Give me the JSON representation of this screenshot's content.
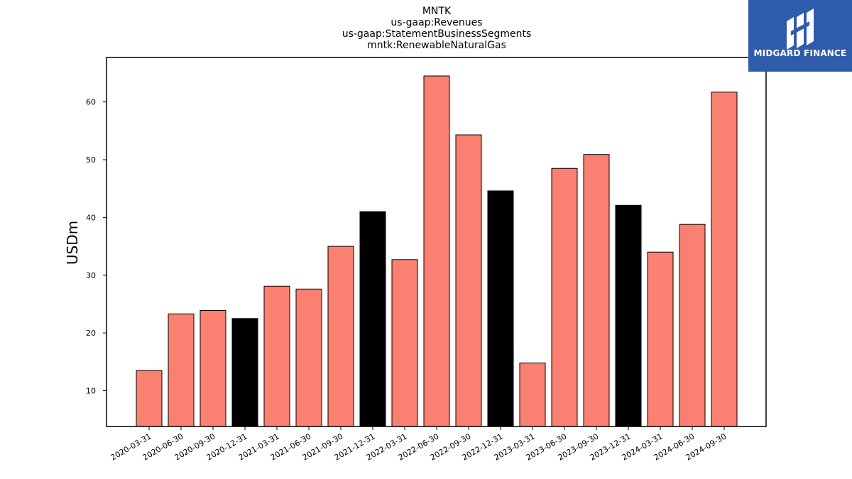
{
  "chart_data": {
    "type": "bar",
    "title_lines": [
      "MNTK",
      "us-gaap:Revenues",
      "us-gaap:StatementBusinessSegments",
      "mntk:RenewableNaturalGas"
    ],
    "ylabel": "USDm",
    "xlabel": "",
    "ylim": [
      3.8,
      67.7
    ],
    "yticks": [
      10,
      20,
      30,
      40,
      50,
      60
    ],
    "categories": [
      "2020-03-31",
      "2020-06-30",
      "2020-09-30",
      "2020-12-31",
      "2021-03-31",
      "2021-06-30",
      "2021-09-30",
      "2021-12-31",
      "2022-03-31",
      "2022-06-30",
      "2022-09-30",
      "2022-12-31",
      "2023-03-31",
      "2023-06-30",
      "2023-09-30",
      "2023-12-31",
      "2024-03-31",
      "2024-06-30",
      "2024-09-30"
    ],
    "values": [
      13.5,
      23.3,
      23.9,
      22.5,
      28.1,
      27.6,
      35.0,
      41.0,
      32.7,
      64.5,
      54.3,
      44.6,
      14.8,
      48.5,
      50.9,
      42.1,
      34.0,
      38.8,
      61.7
    ],
    "is_fiscal_year_end": [
      false,
      false,
      false,
      true,
      false,
      false,
      false,
      true,
      false,
      false,
      false,
      true,
      false,
      false,
      false,
      true,
      false,
      false,
      false
    ],
    "colors": {
      "quarter": "#fa8072",
      "year_end": "#000000",
      "edge": "#000000"
    },
    "grid": false,
    "legend": "none"
  },
  "logo": {
    "text": "MIDGARD FINANCE",
    "background": "#2f5bab"
  }
}
